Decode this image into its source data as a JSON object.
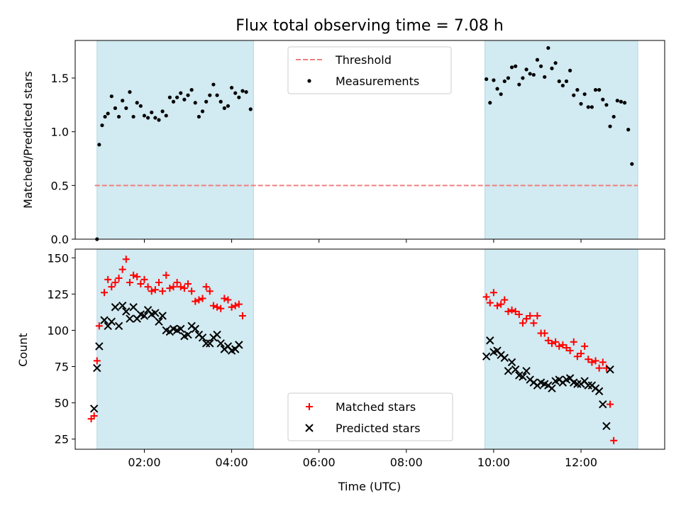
{
  "figure": {
    "title": "Flux total observing time = 7.08 h"
  },
  "chart_data": [
    {
      "type": "scatter",
      "panel": "top",
      "title": "Flux total observing time = 7.08 h",
      "xlabel": "",
      "ylabel": "Matched/Predicted stars",
      "xlim": [
        "00:25",
        "13:55"
      ],
      "ylim": [
        0,
        1.85
      ],
      "y_ticks": [
        0.0,
        0.5,
        1.0,
        1.5
      ],
      "y_tick_labels": [
        "0.0",
        "0.5",
        "1.0",
        "1.5"
      ],
      "x_ticks": [
        "02:00",
        "04:00",
        "06:00",
        "08:00",
        "10:00",
        "12:00"
      ],
      "x_tick_labels_visible": false,
      "grid": false,
      "legend_placement": "top-center",
      "shaded_intervals": [
        [
          "00:55",
          "04:30"
        ],
        [
          "09:48",
          "13:18"
        ]
      ],
      "shaded_color": "#add8e6",
      "threshold": {
        "name": "Threshold",
        "value": 0.5,
        "x_range": [
          "00:52",
          "13:18"
        ],
        "color": "#f08080",
        "style": "dashed"
      },
      "series": [
        {
          "name": "Measurements",
          "marker": "dot",
          "color": "#000000",
          "points": [
            [
              "00:55",
              0.0
            ],
            [
              "00:58",
              0.88
            ],
            [
              "01:02",
              1.06
            ],
            [
              "01:06",
              1.14
            ],
            [
              "01:10",
              1.17
            ],
            [
              "01:15",
              1.33
            ],
            [
              "01:20",
              1.22
            ],
            [
              "01:25",
              1.14
            ],
            [
              "01:30",
              1.29
            ],
            [
              "01:35",
              1.22
            ],
            [
              "01:40",
              1.37
            ],
            [
              "01:45",
              1.14
            ],
            [
              "01:50",
              1.27
            ],
            [
              "01:55",
              1.24
            ],
            [
              "02:00",
              1.15
            ],
            [
              "02:05",
              1.13
            ],
            [
              "02:10",
              1.18
            ],
            [
              "02:15",
              1.13
            ],
            [
              "02:20",
              1.11
            ],
            [
              "02:25",
              1.19
            ],
            [
              "02:30",
              1.15
            ],
            [
              "02:35",
              1.32
            ],
            [
              "02:40",
              1.28
            ],
            [
              "02:45",
              1.32
            ],
            [
              "02:50",
              1.36
            ],
            [
              "02:55",
              1.3
            ],
            [
              "03:00",
              1.34
            ],
            [
              "03:05",
              1.39
            ],
            [
              "03:10",
              1.27
            ],
            [
              "03:15",
              1.14
            ],
            [
              "03:20",
              1.19
            ],
            [
              "03:25",
              1.28
            ],
            [
              "03:30",
              1.34
            ],
            [
              "03:35",
              1.44
            ],
            [
              "03:40",
              1.34
            ],
            [
              "03:45",
              1.28
            ],
            [
              "03:50",
              1.22
            ],
            [
              "03:55",
              1.24
            ],
            [
              "04:00",
              1.41
            ],
            [
              "04:05",
              1.36
            ],
            [
              "04:10",
              1.32
            ],
            [
              "04:15",
              1.38
            ],
            [
              "04:20",
              1.37
            ],
            [
              "04:26",
              1.21
            ],
            [
              "09:50",
              1.49
            ],
            [
              "09:55",
              1.27
            ],
            [
              "10:00",
              1.48
            ],
            [
              "10:05",
              1.4
            ],
            [
              "10:10",
              1.35
            ],
            [
              "10:15",
              1.47
            ],
            [
              "10:20",
              1.5
            ],
            [
              "10:25",
              1.6
            ],
            [
              "10:30",
              1.61
            ],
            [
              "10:35",
              1.44
            ],
            [
              "10:40",
              1.5
            ],
            [
              "10:45",
              1.58
            ],
            [
              "10:50",
              1.54
            ],
            [
              "10:55",
              1.53
            ],
            [
              "11:00",
              1.67
            ],
            [
              "11:05",
              1.61
            ],
            [
              "11:10",
              1.51
            ],
            [
              "11:15",
              1.78
            ],
            [
              "11:20",
              1.59
            ],
            [
              "11:25",
              1.64
            ],
            [
              "11:30",
              1.47
            ],
            [
              "11:35",
              1.43
            ],
            [
              "11:40",
              1.47
            ],
            [
              "11:45",
              1.57
            ],
            [
              "11:50",
              1.34
            ],
            [
              "11:55",
              1.39
            ],
            [
              "12:00",
              1.26
            ],
            [
              "12:05",
              1.35
            ],
            [
              "12:10",
              1.23
            ],
            [
              "12:15",
              1.23
            ],
            [
              "12:20",
              1.39
            ],
            [
              "12:25",
              1.39
            ],
            [
              "12:30",
              1.3
            ],
            [
              "12:35",
              1.25
            ],
            [
              "12:40",
              1.05
            ],
            [
              "12:45",
              1.14
            ],
            [
              "12:50",
              1.29
            ],
            [
              "12:55",
              1.28
            ],
            [
              "13:00",
              1.27
            ],
            [
              "13:05",
              1.02
            ],
            [
              "13:10",
              0.7
            ]
          ]
        }
      ]
    },
    {
      "type": "scatter",
      "panel": "bottom",
      "title": "",
      "xlabel": "Time (UTC)",
      "ylabel": "Count",
      "xlim": [
        "00:25",
        "13:55"
      ],
      "ylim": [
        18,
        156
      ],
      "y_ticks": [
        25,
        50,
        75,
        100,
        125,
        150
      ],
      "y_tick_labels": [
        "25",
        "50",
        "75",
        "100",
        "125",
        "150"
      ],
      "x_ticks": [
        "02:00",
        "04:00",
        "06:00",
        "08:00",
        "10:00",
        "12:00"
      ],
      "x_tick_labels": [
        "02:00",
        "04:00",
        "06:00",
        "08:00",
        "10:00",
        "12:00"
      ],
      "grid": false,
      "legend_placement": "bottom-center",
      "shaded_intervals": [
        [
          "00:55",
          "04:30"
        ],
        [
          "09:48",
          "13:18"
        ]
      ],
      "shaded_color": "#add8e6",
      "series": [
        {
          "name": "Matched stars",
          "marker": "plus",
          "color": "#ff0000",
          "points": [
            [
              "00:47",
              39
            ],
            [
              "00:51",
              41
            ],
            [
              "00:55",
              79
            ],
            [
              "00:58",
              103
            ],
            [
              "01:05",
              126
            ],
            [
              "01:10",
              135
            ],
            [
              "01:15",
              130
            ],
            [
              "01:20",
              133
            ],
            [
              "01:25",
              136
            ],
            [
              "01:30",
              142
            ],
            [
              "01:35",
              149
            ],
            [
              "01:40",
              133
            ],
            [
              "01:45",
              138
            ],
            [
              "01:50",
              137
            ],
            [
              "01:55",
              132
            ],
            [
              "02:00",
              135
            ],
            [
              "02:05",
              130
            ],
            [
              "02:10",
              127
            ],
            [
              "02:15",
              128
            ],
            [
              "02:20",
              133
            ],
            [
              "02:25",
              127
            ],
            [
              "02:30",
              138
            ],
            [
              "02:35",
              129
            ],
            [
              "02:40",
              130
            ],
            [
              "02:45",
              133
            ],
            [
              "02:50",
              130
            ],
            [
              "02:55",
              129
            ],
            [
              "03:00",
              132
            ],
            [
              "03:05",
              127
            ],
            [
              "03:10",
              120
            ],
            [
              "03:15",
              121
            ],
            [
              "03:20",
              122
            ],
            [
              "03:25",
              130
            ],
            [
              "03:30",
              127
            ],
            [
              "03:35",
              117
            ],
            [
              "03:40",
              116
            ],
            [
              "03:45",
              115
            ],
            [
              "03:50",
              122
            ],
            [
              "03:55",
              121
            ],
            [
              "04:00",
              116
            ],
            [
              "04:05",
              117
            ],
            [
              "04:10",
              118
            ],
            [
              "04:15",
              110
            ],
            [
              "09:50",
              123
            ],
            [
              "09:55",
              119
            ],
            [
              "10:00",
              126
            ],
            [
              "10:05",
              117
            ],
            [
              "10:10",
              118
            ],
            [
              "10:15",
              121
            ],
            [
              "10:20",
              113
            ],
            [
              "10:25",
              114
            ],
            [
              "10:30",
              113
            ],
            [
              "10:35",
              111
            ],
            [
              "10:40",
              105
            ],
            [
              "10:45",
              108
            ],
            [
              "10:50",
              110
            ],
            [
              "10:55",
              105
            ],
            [
              "11:00",
              110
            ],
            [
              "11:05",
              98
            ],
            [
              "11:10",
              98
            ],
            [
              "11:15",
              93
            ],
            [
              "11:20",
              91
            ],
            [
              "11:25",
              92
            ],
            [
              "11:30",
              89
            ],
            [
              "11:35",
              90
            ],
            [
              "11:40",
              88
            ],
            [
              "11:45",
              86
            ],
            [
              "11:50",
              92
            ],
            [
              "11:55",
              82
            ],
            [
              "12:00",
              84
            ],
            [
              "12:05",
              89
            ],
            [
              "12:10",
              80
            ],
            [
              "12:15",
              78
            ],
            [
              "12:20",
              79
            ],
            [
              "12:25",
              74
            ],
            [
              "12:30",
              78
            ],
            [
              "12:35",
              74
            ],
            [
              "12:40",
              49
            ],
            [
              "12:45",
              24
            ]
          ]
        },
        {
          "name": "Predicted stars",
          "marker": "x",
          "color": "#000000",
          "points": [
            [
              "00:51",
              46
            ],
            [
              "00:55",
              74
            ],
            [
              "00:58",
              89
            ],
            [
              "01:05",
              107
            ],
            [
              "01:10",
              103
            ],
            [
              "01:15",
              106
            ],
            [
              "01:20",
              116
            ],
            [
              "01:25",
              103
            ],
            [
              "01:30",
              117
            ],
            [
              "01:35",
              113
            ],
            [
              "01:40",
              108
            ],
            [
              "01:45",
              116
            ],
            [
              "01:50",
              108
            ],
            [
              "01:55",
              111
            ],
            [
              "02:00",
              110
            ],
            [
              "02:05",
              114
            ],
            [
              "02:10",
              111
            ],
            [
              "02:15",
              112
            ],
            [
              "02:20",
              106
            ],
            [
              "02:25",
              110
            ],
            [
              "02:30",
              100
            ],
            [
              "02:35",
              99
            ],
            [
              "02:40",
              101
            ],
            [
              "02:45",
              100
            ],
            [
              "02:50",
              101
            ],
            [
              "02:55",
              96
            ],
            [
              "03:00",
              97
            ],
            [
              "03:05",
              103
            ],
            [
              "03:10",
              101
            ],
            [
              "03:15",
              97
            ],
            [
              "03:20",
              95
            ],
            [
              "03:25",
              91
            ],
            [
              "03:30",
              91
            ],
            [
              "03:35",
              95
            ],
            [
              "03:40",
              97
            ],
            [
              "03:45",
              91
            ],
            [
              "03:50",
              87
            ],
            [
              "03:55",
              89
            ],
            [
              "04:00",
              86
            ],
            [
              "04:05",
              87
            ],
            [
              "04:10",
              90
            ],
            [
              "09:50",
              82
            ],
            [
              "09:55",
              93
            ],
            [
              "10:00",
              85
            ],
            [
              "10:05",
              86
            ],
            [
              "10:10",
              83
            ],
            [
              "10:15",
              81
            ],
            [
              "10:20",
              72
            ],
            [
              "10:25",
              78
            ],
            [
              "10:30",
              73
            ],
            [
              "10:35",
              69
            ],
            [
              "10:40",
              68
            ],
            [
              "10:45",
              72
            ],
            [
              "10:50",
              66
            ],
            [
              "10:55",
              64
            ],
            [
              "11:00",
              62
            ],
            [
              "11:05",
              64
            ],
            [
              "11:10",
              63
            ],
            [
              "11:15",
              62
            ],
            [
              "11:20",
              60
            ],
            [
              "11:25",
              65
            ],
            [
              "11:30",
              66
            ],
            [
              "11:35",
              64
            ],
            [
              "11:40",
              66
            ],
            [
              "11:45",
              67
            ],
            [
              "11:50",
              64
            ],
            [
              "11:55",
              63
            ],
            [
              "12:00",
              63
            ],
            [
              "12:05",
              65
            ],
            [
              "12:10",
              62
            ],
            [
              "12:15",
              62
            ],
            [
              "12:20",
              60
            ],
            [
              "12:25",
              58
            ],
            [
              "12:30",
              49
            ],
            [
              "12:35",
              34
            ],
            [
              "12:40",
              73
            ]
          ]
        }
      ]
    }
  ]
}
